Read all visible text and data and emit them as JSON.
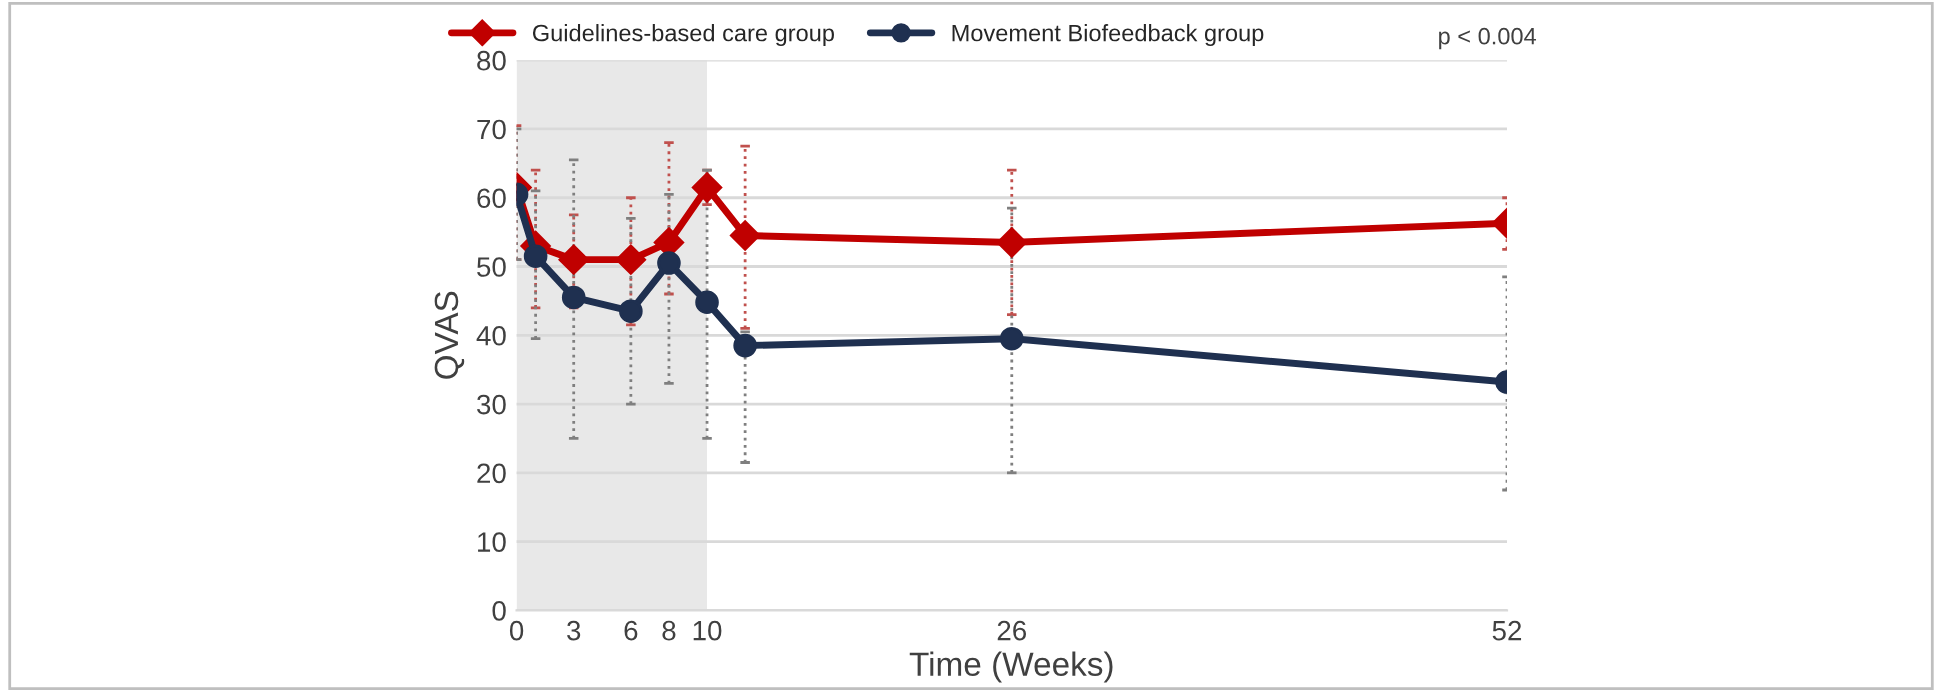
{
  "chart_data": {
    "type": "line",
    "xlabel": "Time (Weeks)",
    "ylabel": "QVAS",
    "x": [
      0,
      1,
      3,
      6,
      8,
      10,
      12,
      26,
      52
    ],
    "series": [
      {
        "name": "Guidelines-based care group",
        "color": "#c00000",
        "marker": "diamond",
        "values": [
          61.5,
          53,
          51,
          51,
          53.5,
          61.5,
          54.5,
          53.5,
          56.3
        ],
        "errors": [
          [
            51,
            70.5
          ],
          [
            44,
            64
          ],
          [
            44,
            57.5
          ],
          [
            41.5,
            60
          ],
          [
            46,
            68
          ],
          [
            59,
            64
          ],
          [
            41,
            67.5
          ],
          [
            43,
            64
          ],
          [
            52.5,
            60
          ]
        ]
      },
      {
        "name": "Movement Biofeedback group",
        "color": "#1f3050",
        "marker": "circle",
        "values": [
          60.5,
          51.5,
          45.5,
          43.5,
          50.5,
          44.8,
          38.5,
          39.5,
          33.2
        ],
        "errors": [
          [
            51,
            70
          ],
          [
            39.5,
            61
          ],
          [
            25,
            65.5
          ],
          [
            30,
            57
          ],
          [
            33,
            60.5
          ],
          [
            25,
            64
          ],
          [
            21.5,
            40.5
          ],
          [
            20,
            58.5
          ],
          [
            17.5,
            48.5
          ]
        ]
      }
    ],
    "xlim": [
      0,
      52
    ],
    "xticks": [
      0,
      3,
      6,
      8,
      10,
      26,
      52
    ],
    "ylim": [
      0,
      80
    ],
    "yticks": [
      0,
      10,
      20,
      30,
      40,
      50,
      60,
      70,
      80
    ],
    "bands": [
      {
        "axis": "x",
        "from": 0,
        "to": 10,
        "color": "#d9d9d9"
      }
    ],
    "annotations": [
      "p < 0.004"
    ],
    "grid": "y",
    "legend": "top",
    "line_style": "solid"
  }
}
